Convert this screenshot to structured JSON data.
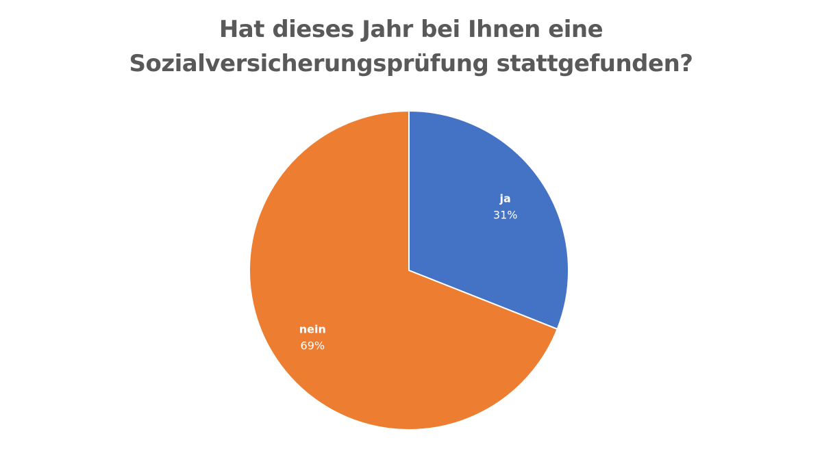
{
  "chart_data": {
    "type": "pie",
    "title_lines": [
      "Hat dieses Jahr bei Ihnen eine",
      "Sozialversicherungsprüfung stattgefunden?"
    ],
    "categories": [
      "ja",
      "nein"
    ],
    "values": [
      31,
      69
    ],
    "value_labels": [
      "31%",
      "69%"
    ],
    "colors": [
      "#4472C4",
      "#ED7D31"
    ],
    "start_angle_deg": 0,
    "direction": "clockwise",
    "legend": "none",
    "data_labels": "inside"
  }
}
